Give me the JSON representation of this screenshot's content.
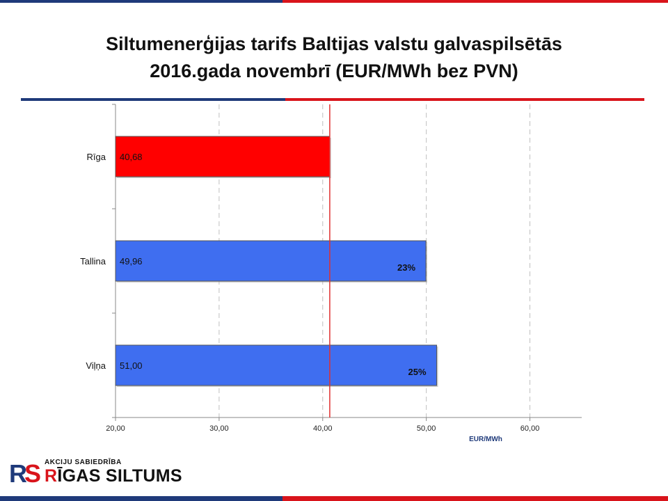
{
  "slide": {
    "title_line1": "Siltumenerģijas tarifs Baltijas valstu galvaspilsētās",
    "title_line2": "2016.gada novembrī (EUR/MWh bez PVN)"
  },
  "logo": {
    "top_text": "AKCIJU SABIEDRĪBA",
    "main_prefix": "R",
    "main_text": "ĪGAS SILTUMS",
    "monogram": "RS"
  },
  "colors": {
    "red": "#ff0000",
    "blue": "#3f6ef0",
    "navy": "#1f3a7a",
    "reference_line": "#e03030",
    "brand_red": "#d9141b"
  },
  "chart_data": {
    "type": "bar",
    "orientation": "horizontal",
    "categories": [
      "Rīga",
      "Tallina",
      "Viļņa"
    ],
    "values": [
      40.68,
      49.96,
      51.0
    ],
    "value_labels": [
      "40,68",
      "49,96",
      "51,00"
    ],
    "pct_labels": [
      "",
      "23%",
      "25%"
    ],
    "bar_colors": [
      "#ff0000",
      "#3f6ef0",
      "#3f6ef0"
    ],
    "xlim": [
      20,
      65
    ],
    "xticks": [
      20,
      30,
      40,
      50,
      60
    ],
    "xtick_labels": [
      "20,00",
      "30,00",
      "40,00",
      "50,00",
      "60,00"
    ],
    "xlabel": "EUR/MWh",
    "reference_value": 40.68,
    "grid": "vertical dashed"
  }
}
